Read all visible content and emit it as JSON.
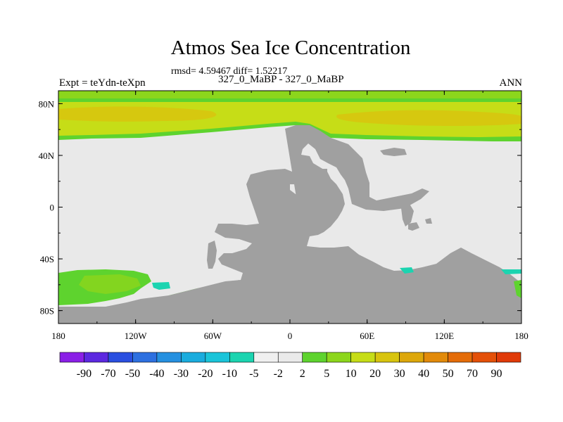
{
  "title": "Atmos Sea Ice Concentration",
  "stats_text": "rmsd= 4.59467 diff= 1.52217",
  "left_label": "Expt = teYdn-teXpn",
  "center_label": "327_0_MaBP - 327_0_MaBP",
  "right_label": "ANN",
  "chart_data": {
    "type": "heatmap",
    "title": "Atmos Sea Ice Concentration",
    "xlim": [
      -180,
      180
    ],
    "ylim": [
      -90,
      90
    ],
    "x_ticks": [
      {
        "value": -180,
        "label": "180"
      },
      {
        "value": -120,
        "label": "120W"
      },
      {
        "value": -60,
        "label": "60W"
      },
      {
        "value": 0,
        "label": "0"
      },
      {
        "value": 60,
        "label": "60E"
      },
      {
        "value": 120,
        "label": "120E"
      },
      {
        "value": 180,
        "label": "180"
      }
    ],
    "y_ticks": [
      {
        "value": 80,
        "label": "80N"
      },
      {
        "value": 40,
        "label": "40N"
      },
      {
        "value": 0,
        "label": "0"
      },
      {
        "value": -40,
        "label": "40S"
      },
      {
        "value": -80,
        "label": "80S"
      }
    ],
    "colorbar": {
      "labels": [
        "-90",
        "-70",
        "-50",
        "-40",
        "-30",
        "-20",
        "-10",
        "-5",
        "-2",
        "2",
        "5",
        "10",
        "20",
        "30",
        "40",
        "50",
        "70",
        "90"
      ],
      "colors": [
        "#8a1fe6",
        "#5c28e0",
        "#2a4fe0",
        "#2d70e0",
        "#2590e0",
        "#1aacde",
        "#1ac4d9",
        "#1bd4b0",
        "#f0f0f0",
        "#eaeaea",
        "#5ed32e",
        "#8cd61c",
        "#c6dd17",
        "#d8c40e",
        "#dda70b",
        "#e28a0a",
        "#e46c08",
        "#e45008",
        "#e03a08"
      ]
    },
    "regions": [
      {
        "name": "Arctic low concentration band",
        "value": "5 to 10",
        "color": "#5ed32e",
        "lon": [
          -180,
          180
        ],
        "lat": [
          52,
          90
        ]
      },
      {
        "name": "Arctic moderate band",
        "value": "10 to 20",
        "color": "#c6dd17",
        "lon": [
          -180,
          180
        ],
        "lat": [
          56,
          84
        ]
      },
      {
        "name": "Arctic higher band",
        "value": "20 to 30",
        "color": "#d8c40e",
        "lon": [
          -175,
          -60
        ],
        "lat": [
          66,
          74
        ]
      },
      {
        "name": "Southern Pacific sector",
        "value": "5 to 10",
        "color": "#5ed32e",
        "lon": [
          -180,
          -100
        ],
        "lat": [
          -75,
          -50
        ]
      },
      {
        "name": "Southern Ocean negative patches",
        "value": "-5 to -2",
        "color": "#1bd4b0",
        "lon": [
          -110,
          -90
        ],
        "lat": [
          -63,
          -58
        ]
      },
      {
        "name": "Indian sector negative patch",
        "value": "-5 to -2",
        "color": "#1bd4b0",
        "lon": [
          88,
          98
        ],
        "lat": [
          -50,
          -48
        ]
      },
      {
        "name": "Eastern edge patch",
        "value": "-5 to -2",
        "color": "#1bd4b0",
        "lon": [
          170,
          180
        ],
        "lat": [
          -50,
          -48
        ]
      }
    ]
  }
}
